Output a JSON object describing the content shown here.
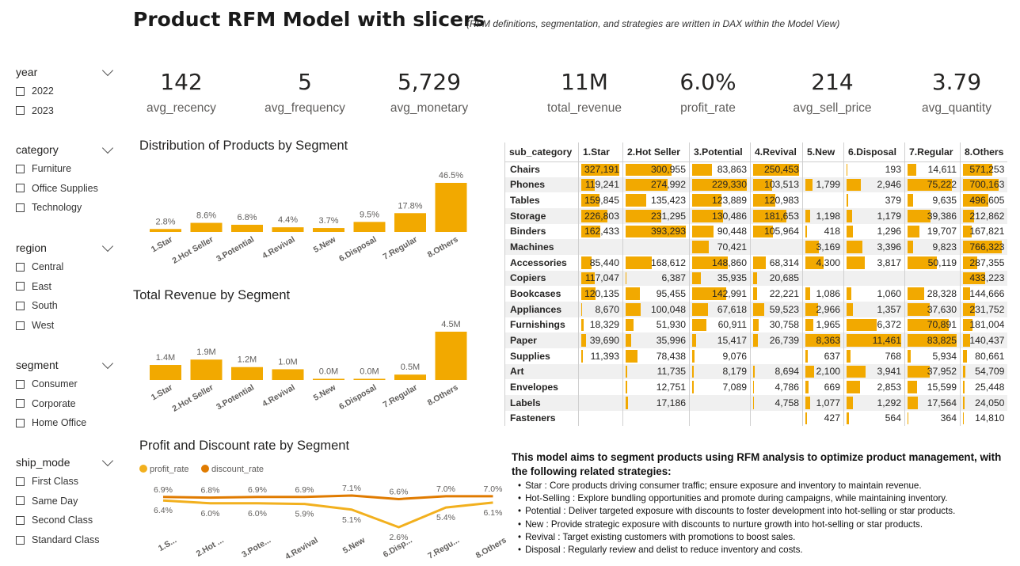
{
  "header": {
    "title": "Product RFM Model with slicers",
    "subtitle": "(RFM definitions, segmentation, and strategies are written in DAX within the Model View)"
  },
  "slicers": [
    {
      "title": "year",
      "items": [
        "2022",
        "2023"
      ]
    },
    {
      "title": "category",
      "items": [
        "Furniture",
        "Office Supplies",
        "Technology"
      ]
    },
    {
      "title": "region",
      "items": [
        "Central",
        "East",
        "South",
        "West"
      ]
    },
    {
      "title": "segment",
      "items": [
        "Consumer",
        "Corporate",
        "Home Office"
      ]
    },
    {
      "title": "ship_mode",
      "items": [
        "First Class",
        "Same Day",
        "Second Class",
        "Standard Class"
      ]
    }
  ],
  "kpis": [
    {
      "value": "142",
      "label": "avg_recency"
    },
    {
      "value": "5",
      "label": "avg_frequency"
    },
    {
      "value": "5,729",
      "label": "avg_monetary"
    },
    {
      "value": "11M",
      "label": "total_revenue"
    },
    {
      "value": "6.0%",
      "label": "profit_rate"
    },
    {
      "value": "214",
      "label": "avg_sell_price"
    },
    {
      "value": "3.79",
      "label": "avg_quantity"
    }
  ],
  "colors": {
    "bar": "#f2a900",
    "profit_line": "#f2b01e",
    "discount_line": "#e07b00"
  },
  "chart_data": [
    {
      "type": "bar",
      "title": "Distribution of Products by Segment",
      "categories": [
        "1.Star",
        "2.Hot Seller",
        "3.Potential",
        "4.Revival",
        "5.New",
        "6.Disposal",
        "7.Regular",
        "8.Others"
      ],
      "values": [
        2.8,
        8.6,
        6.8,
        4.4,
        3.7,
        9.5,
        17.8,
        46.5
      ],
      "labels": [
        "2.8%",
        "8.6%",
        "6.8%",
        "4.4%",
        "3.7%",
        "9.5%",
        "17.8%",
        "46.5%"
      ]
    },
    {
      "type": "bar",
      "title": "Total Revenue by Segment",
      "categories": [
        "1.Star",
        "2.Hot Seller",
        "3.Potential",
        "4.Revival",
        "5.New",
        "6.Disposal",
        "7.Regular",
        "8.Others"
      ],
      "values": [
        1.4,
        1.9,
        1.2,
        1.0,
        0.0,
        0.0,
        0.5,
        4.5
      ],
      "labels": [
        "1.4M",
        "1.9M",
        "1.2M",
        "1.0M",
        "0.0M",
        "0.0M",
        "0.5M",
        "4.5M"
      ]
    },
    {
      "type": "line",
      "title": "Profit and Discount rate by Segment",
      "categories": [
        "1.S...",
        "2.Hot ...",
        "3.Pote...",
        "4.Revival",
        "5.New",
        "6.Disp...",
        "7.Regu...",
        "8.Others"
      ],
      "series": [
        {
          "name": "profit_rate",
          "values": [
            6.4,
            6.0,
            6.0,
            5.9,
            5.1,
            2.6,
            5.4,
            6.1
          ],
          "labels": [
            "6.4%",
            "6.0%",
            "6.0%",
            "5.9%",
            "5.1%",
            "2.6%",
            "5.4%",
            "6.1%"
          ]
        },
        {
          "name": "discount_rate",
          "values": [
            6.9,
            6.8,
            6.9,
            6.9,
            7.1,
            6.6,
            7.0,
            7.0
          ],
          "labels": [
            "6.9%",
            "6.8%",
            "6.9%",
            "6.9%",
            "7.1%",
            "6.6%",
            "7.0%",
            "7.0%"
          ]
        }
      ]
    },
    {
      "type": "table",
      "columns": [
        "sub_category",
        "1.Star",
        "2.Hot Seller",
        "3.Potential",
        "4.Revival",
        "5.New",
        "6.Disposal",
        "7.Regular",
        "8.Others"
      ],
      "rows": [
        {
          "name": "Chairs",
          "values": [
            327191,
            300955,
            83863,
            250453,
            null,
            193,
            14611,
            571253
          ]
        },
        {
          "name": "Phones",
          "values": [
            119241,
            274992,
            229330,
            103513,
            1799,
            2946,
            75222,
            700163
          ]
        },
        {
          "name": "Tables",
          "values": [
            159845,
            135423,
            123889,
            120983,
            null,
            379,
            9635,
            496605
          ]
        },
        {
          "name": "Storage",
          "values": [
            226803,
            231295,
            130486,
            181653,
            1198,
            1179,
            39386,
            212862
          ]
        },
        {
          "name": "Binders",
          "values": [
            162433,
            393293,
            90448,
            105964,
            418,
            1296,
            19707,
            167821
          ]
        },
        {
          "name": "Machines",
          "values": [
            null,
            null,
            70421,
            null,
            3169,
            3396,
            9823,
            766323
          ]
        },
        {
          "name": "Accessories",
          "values": [
            85440,
            168612,
            148860,
            68314,
            4300,
            3817,
            50119,
            287355
          ]
        },
        {
          "name": "Copiers",
          "values": [
            117047,
            6387,
            35935,
            20685,
            null,
            null,
            null,
            433223
          ]
        },
        {
          "name": "Bookcases",
          "values": [
            120135,
            95455,
            142991,
            22221,
            1086,
            1060,
            28328,
            144666
          ]
        },
        {
          "name": "Appliances",
          "values": [
            8670,
            100048,
            67618,
            59523,
            2966,
            1357,
            37630,
            231752
          ]
        },
        {
          "name": "Furnishings",
          "values": [
            18329,
            51930,
            60911,
            30758,
            1965,
            6372,
            70891,
            181004
          ]
        },
        {
          "name": "Paper",
          "values": [
            39690,
            35996,
            15417,
            26739,
            8363,
            11461,
            83825,
            140437
          ]
        },
        {
          "name": "Supplies",
          "values": [
            11393,
            78438,
            9076,
            null,
            637,
            768,
            5934,
            80661
          ]
        },
        {
          "name": "Art",
          "values": [
            null,
            11735,
            8179,
            8694,
            2100,
            3941,
            37952,
            54709
          ]
        },
        {
          "name": "Envelopes",
          "values": [
            null,
            12751,
            7089,
            4786,
            669,
            2853,
            15599,
            25448
          ]
        },
        {
          "name": "Labels",
          "values": [
            null,
            17186,
            null,
            4758,
            1077,
            1292,
            17564,
            24050
          ]
        },
        {
          "name": "Fasteners",
          "values": [
            null,
            null,
            null,
            null,
            427,
            564,
            364,
            14810
          ]
        }
      ]
    }
  ],
  "strategy": {
    "heading": "This model aims to segment products using RFM analysis to optimize product management, with the following related strategies:",
    "items": [
      "Star : Core products driving consumer traffic; ensure exposure and inventory to maintain revenue.",
      "Hot-Selling : Explore bundling opportunities and promote during campaigns, while maintaining inventory.",
      "Potential : Deliver targeted exposure with discounts to foster development into hot-selling or star products.",
      "New : Provide strategic exposure with discounts to nurture growth into hot-selling or star products.",
      "Revival : Target existing customers with promotions to boost sales.",
      "Disposal : Regularly review and delist to reduce inventory and costs."
    ]
  }
}
